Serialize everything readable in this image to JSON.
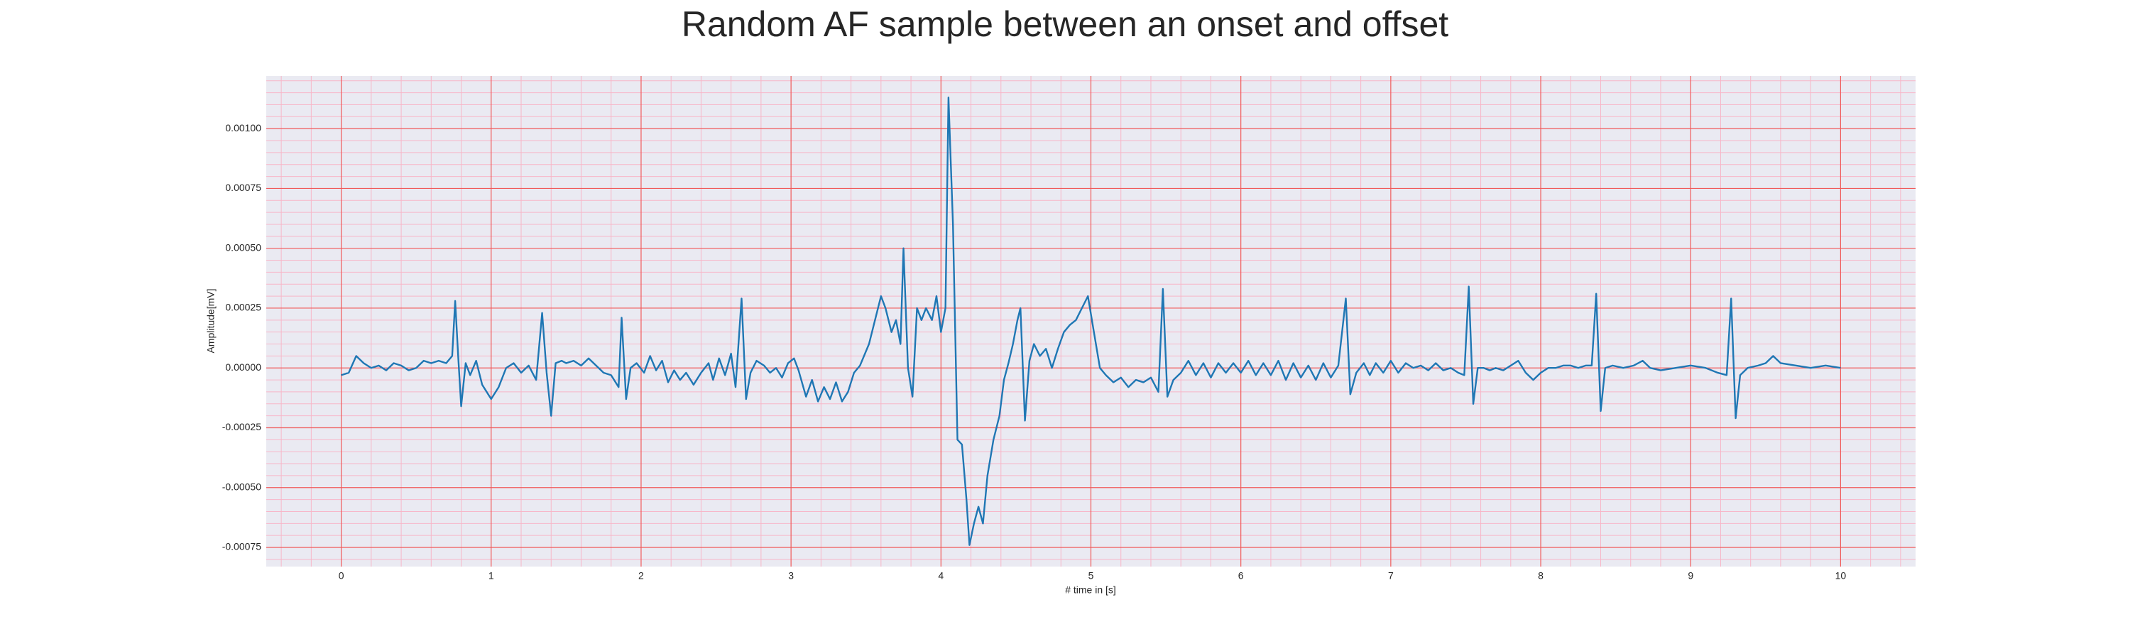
{
  "chart_data": {
    "type": "line",
    "title": "Random AF sample between an onset and offset",
    "xlabel": "# time in [s]",
    "ylabel": "Amplitude[mV]",
    "xlim": [
      -0.5,
      10.5
    ],
    "xticks": [
      0,
      1,
      2,
      3,
      4,
      5,
      6,
      7,
      8,
      9,
      10
    ],
    "ylim": [
      -0.00083,
      0.00122
    ],
    "yticks": [
      {
        "value": -0.00075,
        "label": "-0.00075"
      },
      {
        "value": -0.0005,
        "label": "-0.00050"
      },
      {
        "value": -0.00025,
        "label": "-0.00025"
      },
      {
        "value": 0,
        "label": "0.00000"
      },
      {
        "value": 0.00025,
        "label": "0.00025"
      },
      {
        "value": 0.0005,
        "label": "0.00050"
      },
      {
        "value": 0.00075,
        "label": "0.00075"
      },
      {
        "value": 0.001,
        "label": "0.00100"
      }
    ],
    "grid": true,
    "x": [
      0,
      0.05,
      0.1,
      0.15,
      0.2,
      0.25,
      0.3,
      0.35,
      0.4,
      0.45,
      0.5,
      0.55,
      0.6,
      0.65,
      0.7,
      0.74,
      0.76,
      0.78,
      0.8,
      0.83,
      0.86,
      0.9,
      0.94,
      1.0,
      1.05,
      1.1,
      1.15,
      1.2,
      1.25,
      1.3,
      1.34,
      1.37,
      1.4,
      1.43,
      1.47,
      1.5,
      1.55,
      1.6,
      1.65,
      1.7,
      1.75,
      1.8,
      1.85,
      1.87,
      1.9,
      1.93,
      1.97,
      2.02,
      2.06,
      2.1,
      2.14,
      2.18,
      2.22,
      2.26,
      2.3,
      2.35,
      2.4,
      2.45,
      2.48,
      2.52,
      2.56,
      2.6,
      2.63,
      2.67,
      2.7,
      2.73,
      2.77,
      2.82,
      2.86,
      2.9,
      2.94,
      2.98,
      3.02,
      3.05,
      3.1,
      3.14,
      3.18,
      3.22,
      3.26,
      3.3,
      3.34,
      3.38,
      3.42,
      3.46,
      3.52,
      3.56,
      3.6,
      3.63,
      3.67,
      3.7,
      3.73,
      3.75,
      3.78,
      3.81,
      3.84,
      3.87,
      3.9,
      3.94,
      3.97,
      4.0,
      4.03,
      4.05,
      4.08,
      4.11,
      4.14,
      4.17,
      4.19,
      4.22,
      4.25,
      4.28,
      4.31,
      4.35,
      4.39,
      4.42,
      4.45,
      4.48,
      4.51,
      4.53,
      4.56,
      4.59,
      4.62,
      4.66,
      4.7,
      4.74,
      4.78,
      4.82,
      4.86,
      4.9,
      4.94,
      4.98,
      5.02,
      5.06,
      5.1,
      5.15,
      5.2,
      5.25,
      5.3,
      5.35,
      5.4,
      5.45,
      5.48,
      5.51,
      5.55,
      5.6,
      5.65,
      5.7,
      5.75,
      5.8,
      5.85,
      5.9,
      5.95,
      6.0,
      6.05,
      6.1,
      6.15,
      6.2,
      6.25,
      6.3,
      6.35,
      6.4,
      6.45,
      6.5,
      6.55,
      6.6,
      6.65,
      6.7,
      6.73,
      6.77,
      6.82,
      6.86,
      6.9,
      6.95,
      7.0,
      7.05,
      7.1,
      7.15,
      7.2,
      7.25,
      7.3,
      7.35,
      7.4,
      7.45,
      7.49,
      7.52,
      7.55,
      7.58,
      7.62,
      7.66,
      7.7,
      7.75,
      7.8,
      7.85,
      7.9,
      7.95,
      8.0,
      8.05,
      8.1,
      8.15,
      8.2,
      8.25,
      8.3,
      8.34,
      8.37,
      8.4,
      8.43,
      8.48,
      8.55,
      8.62,
      8.68,
      8.73,
      8.8,
      8.9,
      9.0,
      9.1,
      9.18,
      9.24,
      9.27,
      9.3,
      9.33,
      9.38,
      9.45,
      9.5,
      9.55,
      9.6,
      9.7,
      9.8,
      9.9,
      10
    ],
    "series": [
      {
        "color": "#1f77b4",
        "values": [
          -3e-05,
          -2e-05,
          5e-05,
          2e-05,
          0,
          1e-05,
          -1e-05,
          2e-05,
          1e-05,
          -1e-05,
          0,
          3e-05,
          2e-05,
          3e-05,
          2e-05,
          5e-05,
          0.00028,
          5e-05,
          -0.00016,
          2e-05,
          -3e-05,
          3e-05,
          -7e-05,
          -0.00013,
          -8e-05,
          0,
          2e-05,
          -2e-05,
          1e-05,
          -5e-05,
          0.00023,
          -2e-05,
          -0.0002,
          2e-05,
          3e-05,
          2e-05,
          3e-05,
          1e-05,
          4e-05,
          1e-05,
          -2e-05,
          -3e-05,
          -8e-05,
          0.00021,
          -0.00013,
          0,
          2e-05,
          -2e-05,
          5e-05,
          -1e-05,
          3e-05,
          -6e-05,
          -1e-05,
          -5e-05,
          -2e-05,
          -7e-05,
          -2e-05,
          2e-05,
          -5e-05,
          4e-05,
          -3e-05,
          6e-05,
          -8e-05,
          0.00029,
          -0.00013,
          -2e-05,
          3e-05,
          1e-05,
          -2e-05,
          0,
          -4e-05,
          2e-05,
          4e-05,
          -1e-05,
          -0.00012,
          -5e-05,
          -0.00014,
          -8e-05,
          -0.00013,
          -6e-05,
          -0.00014,
          -0.0001,
          -2e-05,
          1e-05,
          0.0001,
          0.0002,
          0.0003,
          0.00025,
          0.00015,
          0.0002,
          0.0001,
          0.0005,
          0,
          -0.00012,
          0.00025,
          0.0002,
          0.00025,
          0.0002,
          0.0003,
          0.00015,
          0.00025,
          0.00113,
          0.0006,
          -0.0003,
          -0.00032,
          -0.00055,
          -0.00074,
          -0.00065,
          -0.00058,
          -0.00065,
          -0.00045,
          -0.0003,
          -0.0002,
          -5e-05,
          2e-05,
          0.0001,
          0.0002,
          0.00025,
          -0.00022,
          3e-05,
          0.0001,
          5e-05,
          8e-05,
          0,
          8e-05,
          0.00015,
          0.00018,
          0.0002,
          0.00025,
          0.0003,
          0.00015,
          0,
          -3e-05,
          -6e-05,
          -4e-05,
          -8e-05,
          -5e-05,
          -6e-05,
          -4e-05,
          -0.0001,
          0.00033,
          -0.00012,
          -5e-05,
          -2e-05,
          3e-05,
          -3e-05,
          2e-05,
          -4e-05,
          2e-05,
          -2e-05,
          2e-05,
          -2e-05,
          3e-05,
          -3e-05,
          2e-05,
          -3e-05,
          3e-05,
          -5e-05,
          2e-05,
          -4e-05,
          1e-05,
          -5e-05,
          2e-05,
          -4e-05,
          1e-05,
          0.00029,
          -0.00011,
          -2e-05,
          2e-05,
          -3e-05,
          2e-05,
          -2e-05,
          3e-05,
          -2e-05,
          2e-05,
          0,
          1e-05,
          -1e-05,
          2e-05,
          -1e-05,
          0,
          -2e-05,
          -3e-05,
          0.00034,
          -0.00015,
          0,
          0,
          -1e-05,
          0,
          -1e-05,
          1e-05,
          3e-05,
          -2e-05,
          -5e-05,
          -2e-05,
          0,
          0,
          1e-05,
          1e-05,
          0,
          1e-05,
          1e-05,
          0.00031,
          -0.00018,
          0,
          1e-05,
          0,
          1e-05,
          3e-05,
          0,
          -1e-05,
          0,
          1e-05,
          0,
          -2e-05,
          -3e-05,
          0.00029,
          -0.00021,
          -3e-05,
          0,
          1e-05,
          2e-05,
          5e-05,
          2e-05,
          1e-05,
          0,
          1e-05,
          0
        ]
      }
    ]
  }
}
